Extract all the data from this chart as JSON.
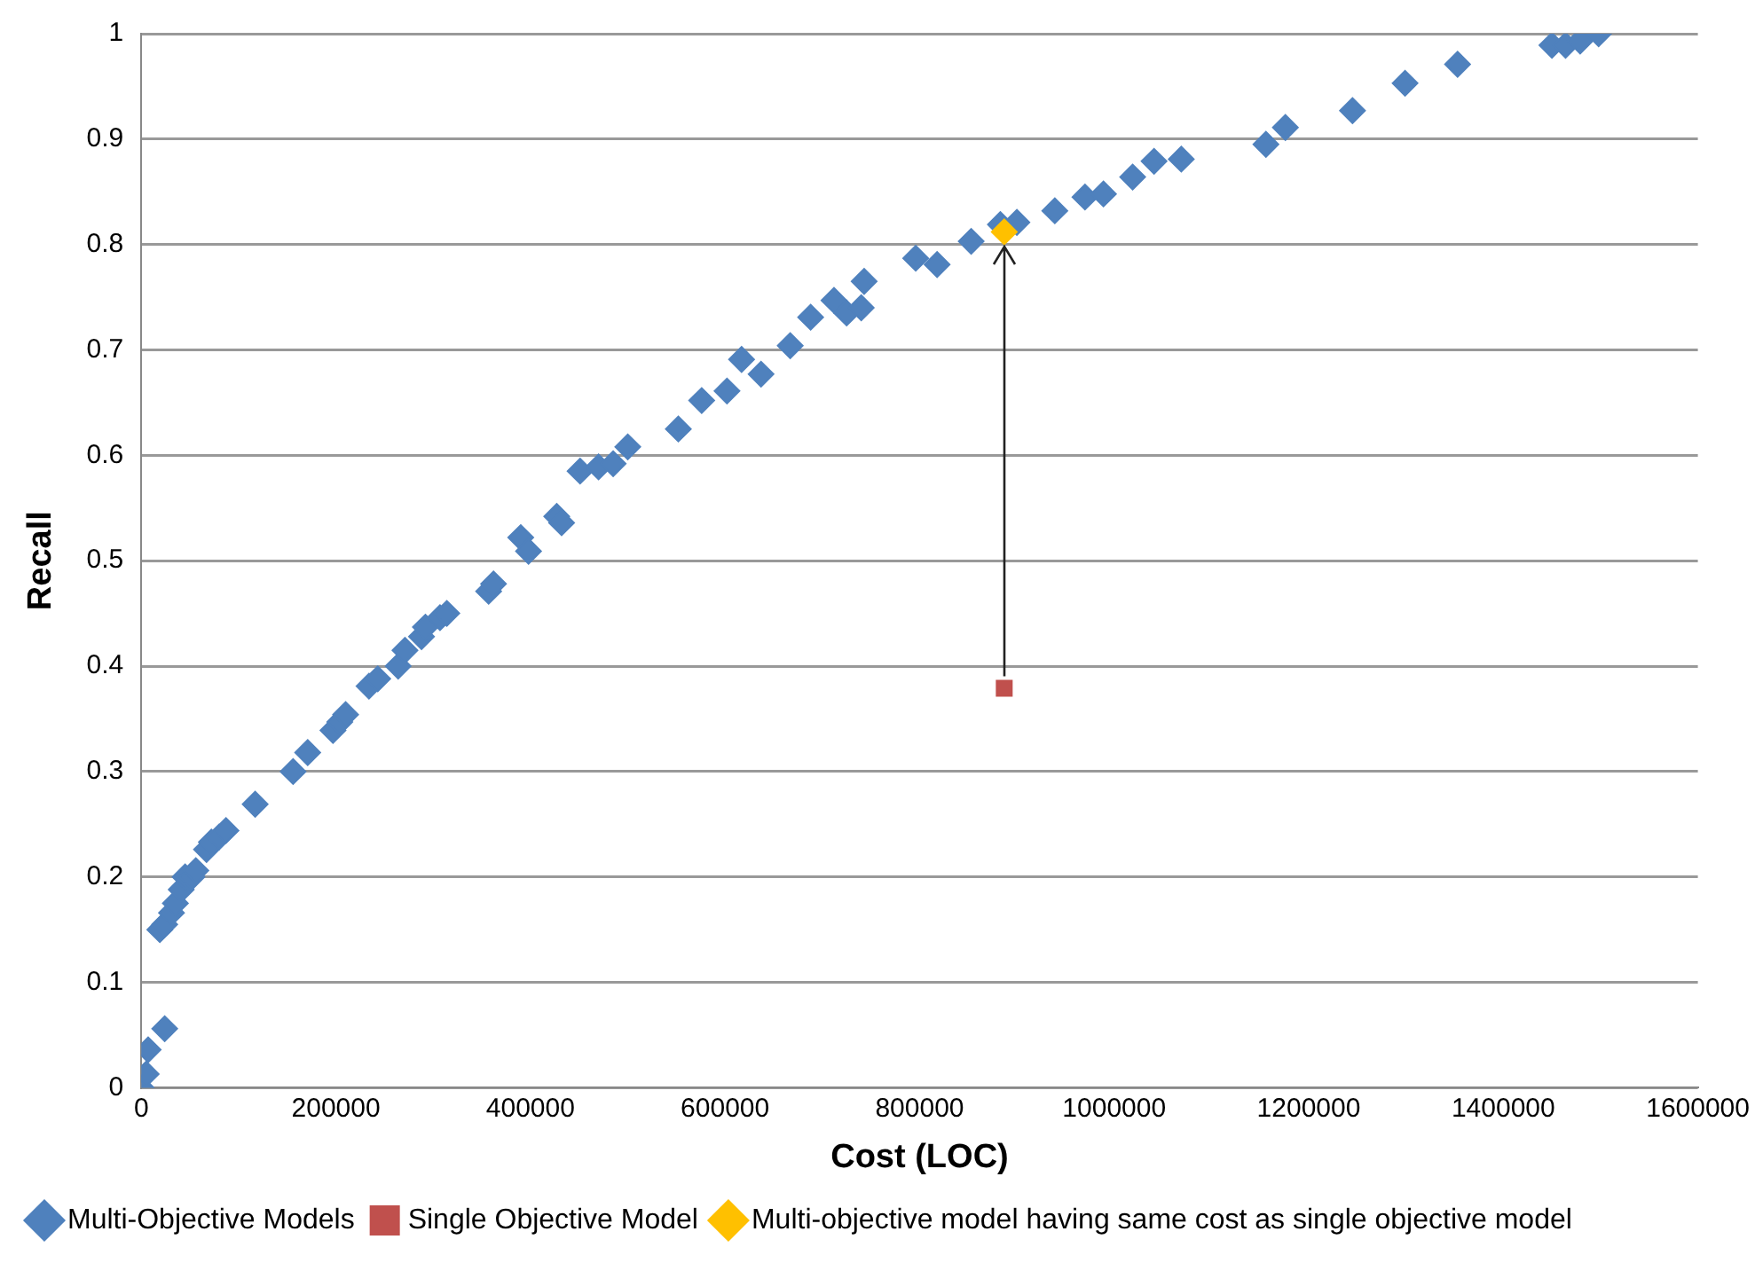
{
  "chart_data": {
    "type": "scatter",
    "xlabel": "Cost (LOC)",
    "ylabel": "Recall",
    "xlim": [
      0,
      1600000
    ],
    "xticks": [
      0,
      200000,
      400000,
      600000,
      800000,
      1000000,
      1200000,
      1400000,
      1600000
    ],
    "ylim": [
      0,
      1
    ],
    "yticks": [
      0,
      0.1,
      0.2,
      0.3,
      0.4,
      0.5,
      0.6,
      0.7,
      0.8,
      0.9,
      1
    ],
    "grid": "y",
    "legend": "bottom",
    "series": [
      {
        "name": "Multi-Objective Models",
        "color": "#4f81bd",
        "marker": "diamond",
        "x": [
          0,
          5000,
          7000,
          24000,
          19000,
          24000,
          31000,
          35000,
          41000,
          45000,
          52000,
          56000,
          67000,
          72000,
          80000,
          87000,
          117000,
          156000,
          171000,
          197000,
          204000,
          210000,
          234000,
          243000,
          264000,
          271000,
          288000,
          292000,
          307000,
          314000,
          357000,
          362000,
          390000,
          398000,
          427000,
          432000,
          451000,
          470000,
          485000,
          500000,
          552000,
          576000,
          602000,
          617000,
          637000,
          667000,
          688000,
          712000,
          725000,
          740000,
          743000,
          796000,
          818000,
          853000,
          883000,
          900000,
          939000,
          970000,
          989000,
          1019000,
          1041000,
          1069000,
          1156000,
          1176000,
          1245000,
          1299000,
          1353000,
          1450000,
          1464000,
          1479000,
          1498000
        ],
        "values": [
          0,
          0.013,
          0.036,
          0.056,
          0.15,
          0.155,
          0.166,
          0.175,
          0.188,
          0.2,
          0.2,
          0.206,
          0.226,
          0.233,
          0.238,
          0.244,
          0.269,
          0.3,
          0.318,
          0.339,
          0.347,
          0.354,
          0.381,
          0.388,
          0.4,
          0.415,
          0.428,
          0.437,
          0.446,
          0.45,
          0.471,
          0.478,
          0.522,
          0.509,
          0.542,
          0.536,
          0.585,
          0.589,
          0.592,
          0.608,
          0.625,
          0.652,
          0.661,
          0.691,
          0.677,
          0.704,
          0.731,
          0.747,
          0.735,
          0.74,
          0.765,
          0.787,
          0.781,
          0.803,
          0.819,
          0.821,
          0.832,
          0.845,
          0.848,
          0.864,
          0.879,
          0.881,
          0.895,
          0.911,
          0.927,
          0.953,
          0.971,
          0.989,
          0.989,
          0.993,
          1.0
        ]
      },
      {
        "name": "Single Objective Model",
        "color": "#c0504d",
        "marker": "square",
        "x": [
          887000
        ],
        "values": [
          0.379
        ]
      },
      {
        "name": "Multi-objective model having same cost as single objective model",
        "color": "#ffc000",
        "marker": "diamond",
        "x": [
          887000
        ],
        "values": [
          0.812
        ]
      }
    ]
  }
}
